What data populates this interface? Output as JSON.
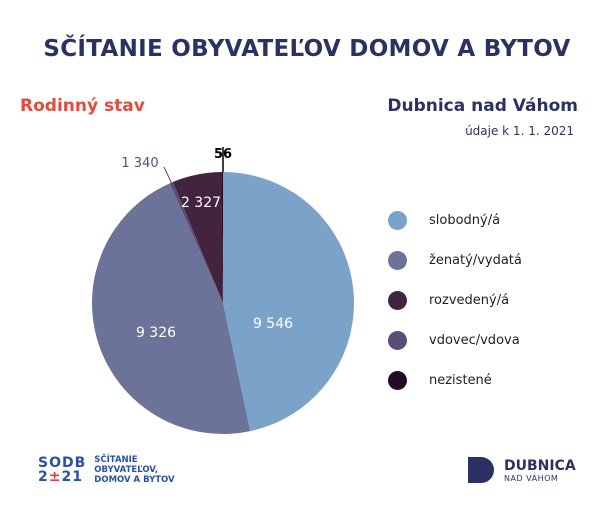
{
  "header": {
    "title": "SČÍTANIE OBYVATEĽOV DOMOV A BYTOV",
    "subtitle": "Rodinný stav",
    "city": "Dubnica nad Váhom",
    "date": "údaje k 1. 1. 2021"
  },
  "chart_data": {
    "type": "pie",
    "title": "Rodinný stav",
    "categories": [
      "slobodný/á",
      "ženatý/vydatá",
      "rozvedený/á",
      "vdovec/vdova",
      "nezistené"
    ],
    "values": [
      9546,
      9326,
      2327,
      1340,
      56
    ],
    "value_labels": [
      "9 546",
      "9 326",
      "2 327",
      "1 340",
      "56"
    ],
    "colors": [
      "#7ba3c9",
      "#6b7399",
      "#43243f",
      "#5b4d78",
      "#240a24"
    ],
    "legend_position": "right"
  },
  "legend": [
    {
      "label": "slobodný/á",
      "color": "#7ba3c9"
    },
    {
      "label": "ženatý/vydatá",
      "color": "#6b7399"
    },
    {
      "label": "rozvedený/á",
      "color": "#43243f"
    },
    {
      "label": "vdovec/vdova",
      "color": "#5b4d78"
    },
    {
      "label": "nezistené",
      "color": "#240a24"
    }
  ],
  "footer": {
    "sodb_top": "SODB",
    "sodb_bottom_a": "2",
    "sodb_bottom_b": "±",
    "sodb_bottom_c": "21",
    "sodb_text1": "SČÍTANIE",
    "sodb_text2": "OBYVATEĽOV,",
    "sodb_text3": "DOMOV A BYTOV",
    "dubnica_big": "DUBNICA",
    "dubnica_small": "NAD VÁHOM"
  }
}
